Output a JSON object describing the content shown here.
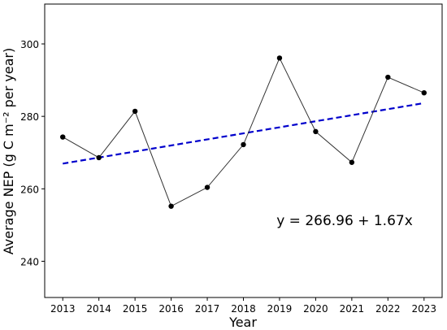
{
  "chart_data": {
    "type": "line",
    "title": "",
    "xlabel": "Year",
    "ylabel": "Average NEP (g C m⁻² per year)",
    "x": [
      2013,
      2014,
      2015,
      2016,
      2017,
      2018,
      2019,
      2020,
      2021,
      2022,
      2023
    ],
    "xlim": [
      2012.5,
      2023.5
    ],
    "ylim": [
      230,
      311
    ],
    "yticks": [
      240,
      260,
      280,
      300
    ],
    "grid": false,
    "legend": "none",
    "series": [
      {
        "values": [
          274.3,
          268.6,
          281.4,
          255.2,
          260.4,
          272.2,
          296.1,
          275.8,
          267.3,
          290.8,
          286.5
        ],
        "color": "#333333",
        "marker": "circle",
        "marker_color": "#000000"
      }
    ],
    "trend": {
      "intercept": 266.96,
      "slope": 1.67,
      "color": "#0000cc",
      "style": "dashed"
    },
    "annotation": "y = 266.96 + 1.67x"
  }
}
